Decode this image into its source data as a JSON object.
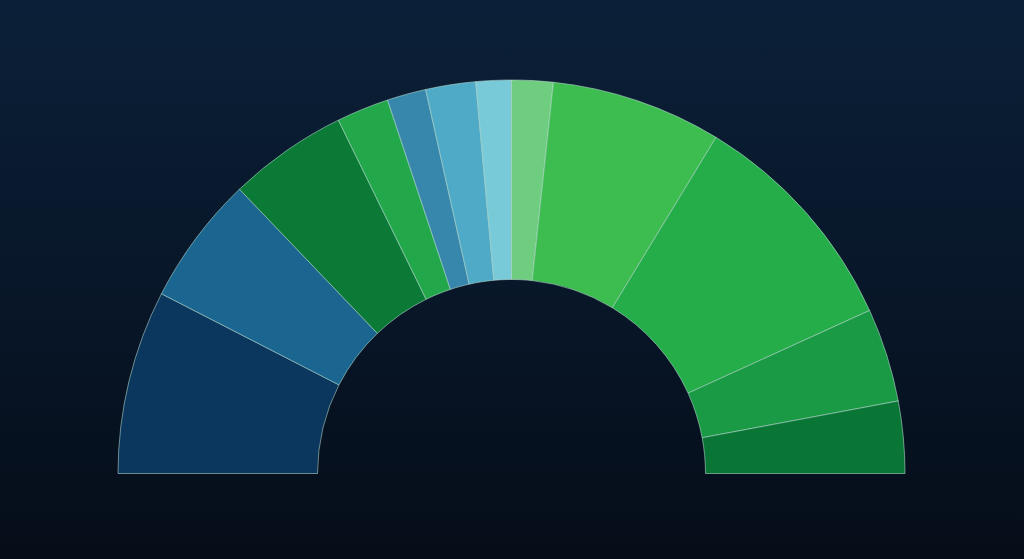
{
  "chart_data": {
    "type": "donut",
    "categories": [
      null,
      null,
      null,
      null,
      null,
      null,
      null,
      null,
      null,
      null,
      null,
      null
    ],
    "values": [
      15.1,
      10.6,
      9.8,
      4.3,
      3.2,
      4.1,
      2.9,
      3.4,
      14.0,
      19.0,
      7.7,
      5.9
    ],
    "colors": [
      "#0b365d",
      "#1a6690",
      "#0b7a37",
      "#22a84a",
      "#3687ab",
      "#4eaac6",
      "#78cad8",
      "#6ecd7e",
      "#3dbd4f",
      "#25ad4a",
      "#1a9a45",
      "#0a7636"
    ]
  }
}
